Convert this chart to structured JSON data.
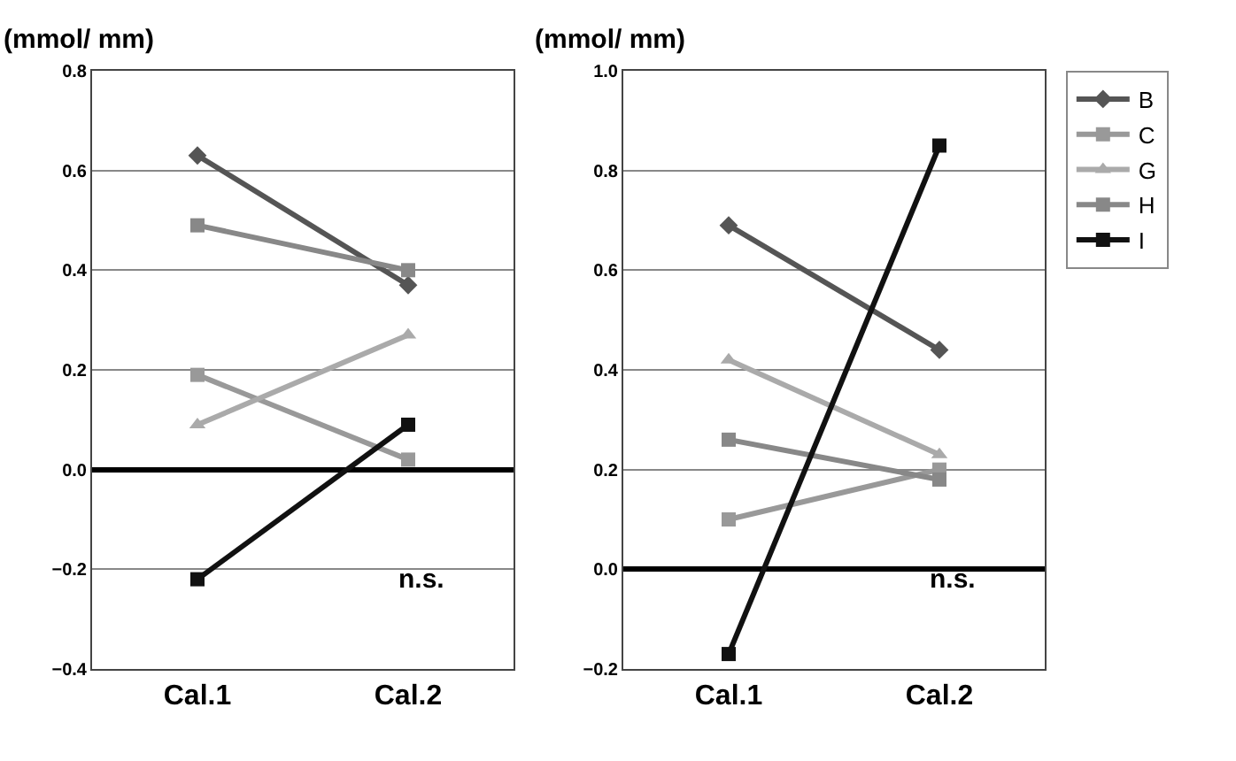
{
  "chart_data": [
    {
      "type": "line",
      "ylabel": "(mmol/ mm)",
      "categories": [
        "Cal.1",
        "Cal.2"
      ],
      "ylim": [
        -0.4,
        0.8
      ],
      "yticks": [
        {
          "value": -0.4,
          "label": "−0.4"
        },
        {
          "value": -0.2,
          "label": "−0.2"
        },
        {
          "value": 0,
          "label": "0.0"
        },
        {
          "value": 0.2,
          "label": "0.2"
        },
        {
          "value": 0.4,
          "label": "0.4"
        },
        {
          "value": 0.6,
          "label": "0.6"
        },
        {
          "value": 0.8,
          "label": "0.8"
        }
      ],
      "grid": "y",
      "legend": false,
      "series": [
        {
          "color": "#555555",
          "marker": "diamond",
          "values": [
            0.63,
            0.37
          ]
        },
        {
          "color": "#999999",
          "marker": "square",
          "values": [
            0.19,
            0.02
          ]
        },
        {
          "color": "#aaaaaa",
          "marker": "triangle",
          "values": [
            0.09,
            0.27
          ]
        },
        {
          "color": "#888888",
          "marker": "square",
          "values": [
            0.49,
            0.4
          ]
        },
        {
          "color": "#111111",
          "marker": "square",
          "values": [
            -0.22,
            0.09
          ]
        }
      ],
      "annotations": [
        "n.s."
      ]
    },
    {
      "type": "line",
      "ylabel": "(mmol/ mm)",
      "categories": [
        "Cal.1",
        "Cal.2"
      ],
      "ylim": [
        -0.2,
        1.0
      ],
      "yticks": [
        {
          "value": -0.2,
          "label": "−0.2"
        },
        {
          "value": 0,
          "label": "0.0"
        },
        {
          "value": 0.2,
          "label": "0.2"
        },
        {
          "value": 0.4,
          "label": "0.4"
        },
        {
          "value": 0.6,
          "label": "0.6"
        },
        {
          "value": 0.8,
          "label": "0.8"
        },
        {
          "value": 1.0,
          "label": "1.0"
        }
      ],
      "grid": "y",
      "legend": "right",
      "series": [
        {
          "name": "B",
          "color": "#555555",
          "marker": "diamond",
          "values": [
            0.69,
            0.44
          ]
        },
        {
          "name": "C",
          "color": "#999999",
          "marker": "square",
          "values": [
            0.1,
            0.2
          ]
        },
        {
          "name": "G",
          "color": "#aaaaaa",
          "marker": "triangle",
          "values": [
            0.42,
            0.23
          ]
        },
        {
          "name": "H",
          "color": "#888888",
          "marker": "square",
          "values": [
            0.26,
            0.18
          ]
        },
        {
          "name": "I",
          "color": "#111111",
          "marker": "square",
          "values": [
            -0.17,
            0.85
          ]
        }
      ],
      "annotations": [
        "n.s."
      ]
    }
  ]
}
